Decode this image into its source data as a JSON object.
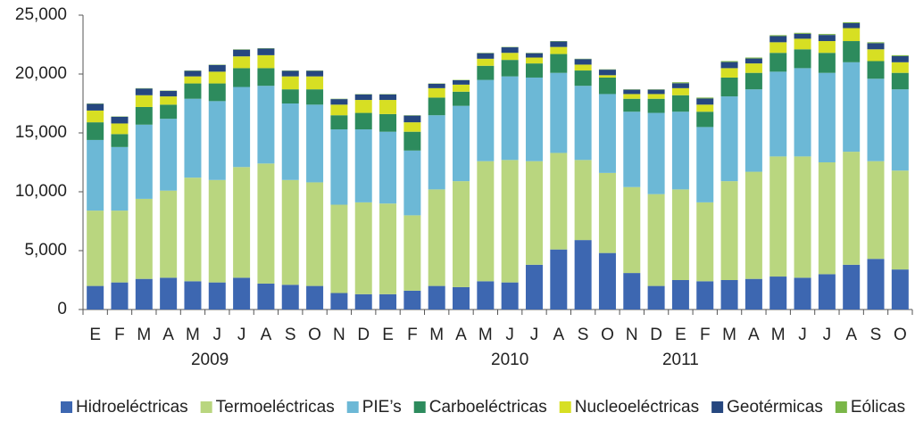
{
  "chart_data": {
    "type": "stacked_bar",
    "categories": [
      "E",
      "F",
      "M",
      "A",
      "M",
      "J",
      "J",
      "A",
      "S",
      "O",
      "N",
      "D",
      "E",
      "F",
      "M",
      "A",
      "M",
      "J",
      "J",
      "A",
      "S",
      "O",
      "N",
      "D",
      "E",
      "F",
      "M",
      "A",
      "M",
      "J",
      "J",
      "A",
      "S",
      "O"
    ],
    "x_groups": [
      "2009",
      "2010",
      "2011"
    ],
    "ylim": [
      0,
      25000
    ],
    "yticks": [
      0,
      {
        "value": 5000,
        "label": "5,000"
      },
      {
        "value": 10000,
        "label": "10,000"
      },
      {
        "value": 15000,
        "label": "15,000"
      },
      {
        "value": 20000,
        "label": "20,000"
      },
      {
        "value": 25000,
        "label": "25,000"
      }
    ],
    "series": [
      {
        "name": "Hidroeléctricas",
        "color": "#3d67b1",
        "values": [
          2000,
          2300,
          2600,
          2700,
          2400,
          2300,
          2700,
          2200,
          2100,
          2000,
          1400,
          1300,
          1300,
          1600,
          2000,
          1900,
          2400,
          2300,
          3800,
          5100,
          5900,
          4800,
          3100,
          2000,
          2500,
          2400,
          2500,
          2600,
          2800,
          2700,
          3000,
          3800,
          4300,
          3400
        ]
      },
      {
        "name": "Termoeléctricas",
        "color": "#b9d67f",
        "values": [
          6400,
          6100,
          6800,
          7400,
          8800,
          8700,
          9400,
          10200,
          8900,
          8800,
          7500,
          7800,
          7700,
          6400,
          8200,
          9000,
          10200,
          10400,
          8800,
          8200,
          6800,
          6800,
          7300,
          7800,
          7700,
          6700,
          8400,
          9100,
          10200,
          10300,
          9500,
          9600,
          8300,
          8400
        ]
      },
      {
        "name": "PIE’s",
        "color": "#6cb8d6",
        "values": [
          6000,
          5400,
          6300,
          6100,
          6700,
          6700,
          6800,
          6600,
          6500,
          6600,
          6400,
          6200,
          6100,
          5500,
          6300,
          6400,
          6900,
          7100,
          7100,
          6800,
          6300,
          6700,
          6400,
          6900,
          6600,
          6400,
          7200,
          7000,
          7200,
          7500,
          7600,
          7600,
          7000,
          6900
        ]
      },
      {
        "name": "Carboeléctricas",
        "color": "#2d8b5d",
        "values": [
          1500,
          1100,
          1500,
          1200,
          1300,
          1500,
          1600,
          1500,
          1200,
          1300,
          1200,
          1400,
          1500,
          1600,
          1500,
          1200,
          1200,
          1400,
          1200,
          1600,
          1300,
          1400,
          1100,
          1200,
          1400,
          1300,
          1600,
          1400,
          1600,
          1600,
          1700,
          1800,
          1500,
          1400
        ]
      },
      {
        "name": "Nucleoeléctricas",
        "color": "#d7df23",
        "values": [
          1000,
          900,
          1000,
          700,
          600,
          1000,
          1000,
          1100,
          1100,
          1100,
          900,
          1100,
          1200,
          800,
          800,
          600,
          600,
          600,
          500,
          600,
          500,
          200,
          400,
          400,
          600,
          600,
          800,
          800,
          900,
          900,
          1000,
          1100,
          1000,
          900
        ]
      },
      {
        "name": "Geotérmicas",
        "color": "#26477f",
        "values": [
          570,
          570,
          570,
          470,
          470,
          570,
          570,
          570,
          470,
          470,
          470,
          470,
          470,
          570,
          370,
          370,
          470,
          470,
          370,
          470,
          470,
          470,
          370,
          370,
          420,
          520,
          520,
          420,
          520,
          420,
          520,
          420,
          520,
          520
        ]
      },
      {
        "name": "Eólicas",
        "color": "#7ab648",
        "values": [
          30,
          30,
          30,
          30,
          30,
          30,
          30,
          30,
          30,
          30,
          30,
          30,
          30,
          30,
          30,
          30,
          30,
          30,
          30,
          30,
          30,
          30,
          30,
          30,
          80,
          80,
          80,
          80,
          80,
          80,
          80,
          80,
          80,
          80
        ]
      }
    ],
    "legend": "bottom"
  }
}
